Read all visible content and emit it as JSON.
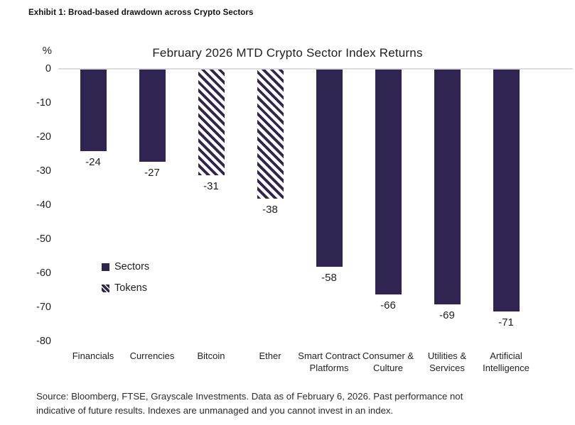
{
  "exhibit_title": "Exhibit 1: Broad-based drawdown across Crypto Sectors",
  "chart_data": {
    "type": "bar",
    "title": "February 2026 MTD Crypto Sector Index Returns",
    "ylabel": "%",
    "ylim": [
      -80,
      0
    ],
    "yticks": [
      0,
      -10,
      -20,
      -30,
      -40,
      -50,
      -60,
      -70,
      -80
    ],
    "grid": "zero-baseline-only",
    "legend_position": "inside-left",
    "categories": [
      "Financials",
      "Currencies",
      "Bitcoin",
      "Ether",
      "Smart Contract Platforms",
      "Consumer & Culture",
      "Utilities & Services",
      "Artificial Intelligence"
    ],
    "values": [
      -24,
      -27,
      -31,
      -38,
      -58,
      -66,
      -69,
      -71
    ],
    "bar_styles": [
      "solid",
      "solid",
      "hatched",
      "hatched",
      "solid",
      "solid",
      "solid",
      "solid"
    ],
    "series_legend": [
      {
        "name": "Sectors",
        "style": "solid"
      },
      {
        "name": "Tokens",
        "style": "hatched"
      }
    ]
  },
  "source": {
    "line1": "Source: Bloomberg, FTSE, Grayscale Investments. Data as of February 6, 2026. Past performance not",
    "line2": "indicative of future results. Indexes are unmanaged and you cannot invest in an index."
  },
  "colors": {
    "bar": "#2f2550",
    "gridline": "#dcdcdc",
    "text": "#1f1f1f"
  }
}
